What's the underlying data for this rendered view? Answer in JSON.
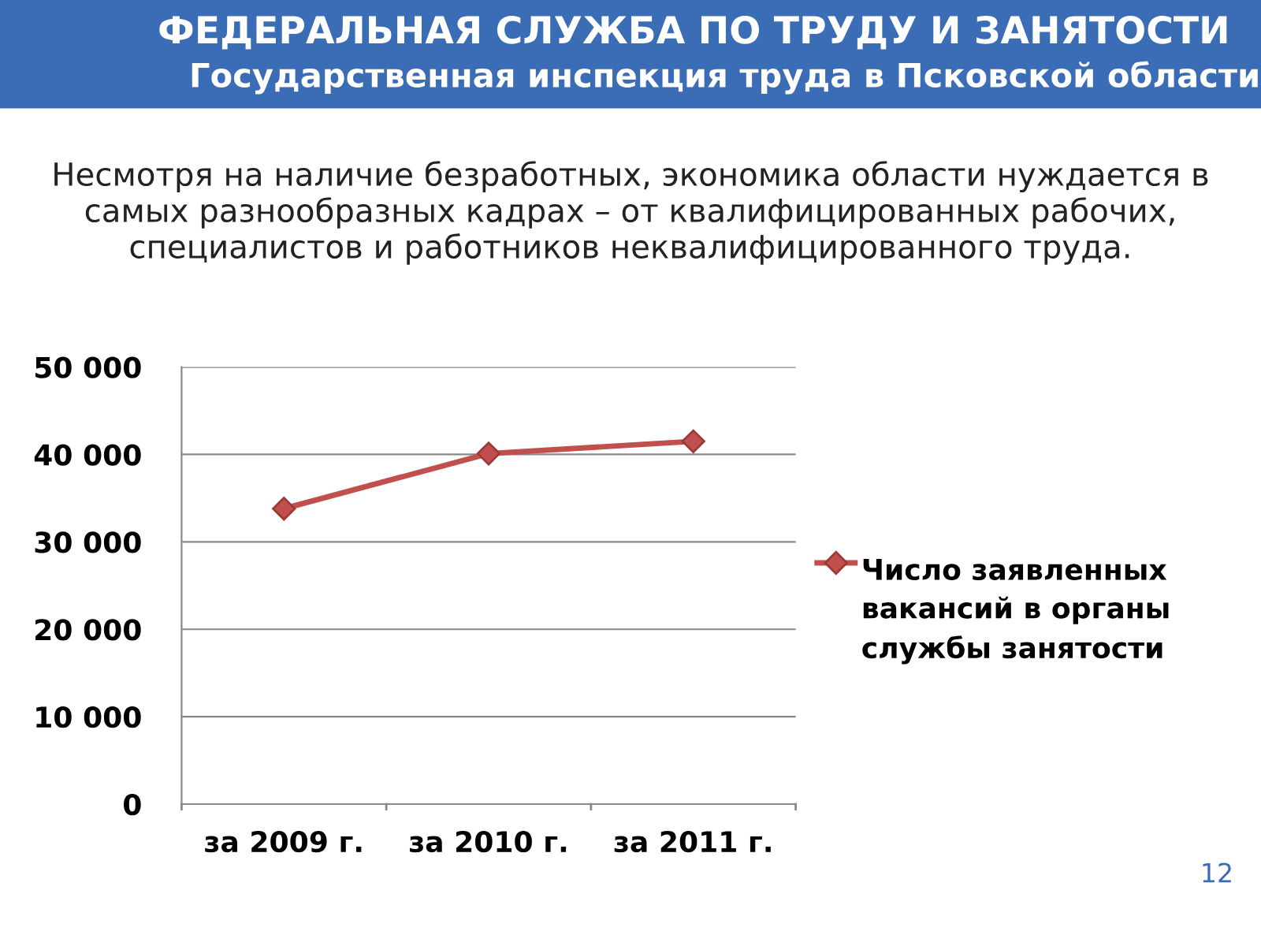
{
  "chart_data": {
    "type": "line",
    "title": "ФЕДЕРАЛЬНАЯ СЛУЖБА ПО ТРУДУ И ЗАНЯТОСТИ",
    "subtitle": "Государственная инспекция труда в Псковской области",
    "annotations": [
      "Несмотря на наличие безработных, экономика области нуждается в самых разнообразных кадрах – от квалифицированных рабочих, специалистов и работников неквалифицированного труда.",
      "12"
    ],
    "categories": [
      "за 2009 г.",
      "за 2010 г.",
      "за 2011 г."
    ],
    "series": [
      {
        "name": "Число заявленных вакансий в органы службы занятости",
        "color": "#c0504d",
        "values": [
          33800,
          40100,
          41500
        ]
      }
    ],
    "ylim": [
      0,
      50000
    ],
    "yticks": [
      {
        "value": 0,
        "label": "0"
      },
      {
        "value": 10000,
        "label": "10 000"
      },
      {
        "value": 20000,
        "label": "20 000"
      },
      {
        "value": 30000,
        "label": "30 000"
      },
      {
        "value": 40000,
        "label": "40 000"
      },
      {
        "value": 50000,
        "label": "50 000"
      }
    ],
    "grid": "y",
    "legend": "right",
    "marker": "diamond",
    "line_style": "solid"
  }
}
